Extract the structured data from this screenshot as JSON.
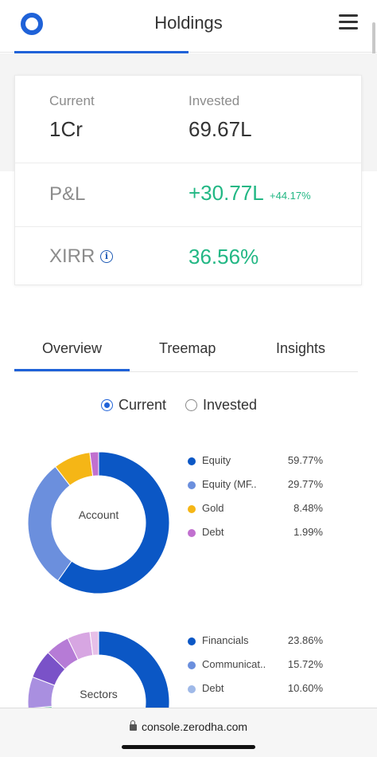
{
  "header": {
    "title": "Holdings",
    "logo_icon": "zerodha-logo-icon",
    "menu_icon": "hamburger-menu-icon"
  },
  "summary": {
    "current_label": "Current",
    "current_value": "1Cr",
    "invested_label": "Invested",
    "invested_value": "69.67L",
    "pl_label": "P&L",
    "pl_value": "+30.77L",
    "pl_percent": "+44.17%",
    "xirr_label": "XIRR",
    "xirr_value": "36.56%",
    "info_icon": "info-icon",
    "positive_color": "#22b784"
  },
  "tabs": [
    {
      "label": "Overview",
      "active": true
    },
    {
      "label": "Treemap",
      "active": false
    },
    {
      "label": "Insights",
      "active": false
    }
  ],
  "view_toggle": {
    "options": [
      "Current",
      "Invested"
    ],
    "selected": "Current"
  },
  "charts": {
    "account": {
      "center_label": "Account",
      "items": [
        {
          "name": "Equity",
          "percent": "59.77%",
          "value": 59.77,
          "color": "#0b57c5"
        },
        {
          "name": "Equity (MF..",
          "percent": "29.77%",
          "value": 29.77,
          "color": "#6b8fdd"
        },
        {
          "name": "Gold",
          "percent": "8.48%",
          "value": 8.48,
          "color": "#f5b616"
        },
        {
          "name": "Debt",
          "percent": "1.99%",
          "value": 1.99,
          "color": "#c170cf"
        }
      ]
    },
    "sectors": {
      "center_label": "Sectors",
      "items": [
        {
          "name": "Financials",
          "percent": "23.86%",
          "value": 23.86,
          "color": "#0b57c5"
        },
        {
          "name": "Communicat..",
          "percent": "15.72%",
          "value": 15.72,
          "color": "#6b8fdd"
        },
        {
          "name": "Debt",
          "percent": "10.60%",
          "value": 10.6,
          "color": "#9fb9e8"
        }
      ],
      "other_slices": [
        {
          "value": 6.0,
          "color": "#7fcab8"
        },
        {
          "value": 5.5,
          "color": "#a98fe0"
        },
        {
          "value": 5.0,
          "color": "#7a52c8"
        },
        {
          "value": 4.2,
          "color": "#b67bd6"
        },
        {
          "value": 4.0,
          "color": "#d7a6e2"
        },
        {
          "value": 1.5,
          "color": "#e7c0e8"
        }
      ]
    }
  },
  "address_bar": {
    "url": "console.zerodha.com",
    "lock_icon": "lock-icon"
  }
}
